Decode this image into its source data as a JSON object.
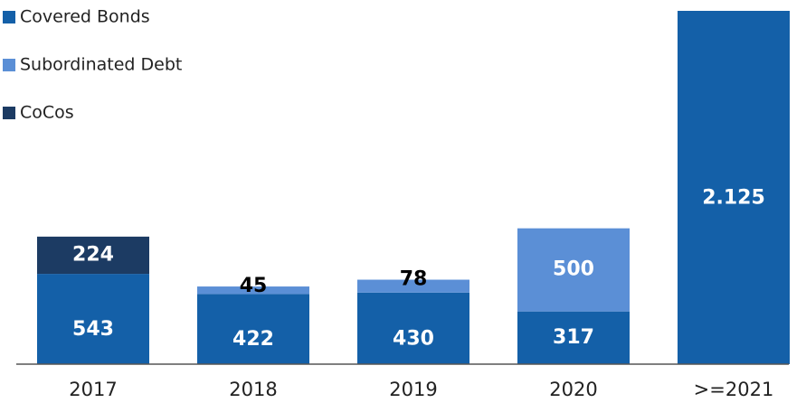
{
  "chart_data": {
    "type": "stacked_bar",
    "categories": [
      "2017",
      "2018",
      "2019",
      "2020",
      ">=2021"
    ],
    "series": [
      {
        "name": "Covered Bonds",
        "color": "#1460a8",
        "values": [
          543,
          422,
          430,
          317,
          2125
        ],
        "value_labels": [
          "543",
          "422",
          "430",
          "317",
          "2.125"
        ]
      },
      {
        "name": "Subordinated Debt",
        "color": "#5b8fd6",
        "values": [
          null,
          45,
          78,
          500,
          null
        ]
      },
      {
        "name": "CoCos",
        "color": "#1c3b63",
        "values": [
          224,
          null,
          null,
          null,
          null
        ]
      }
    ],
    "legend": "top-left"
  }
}
